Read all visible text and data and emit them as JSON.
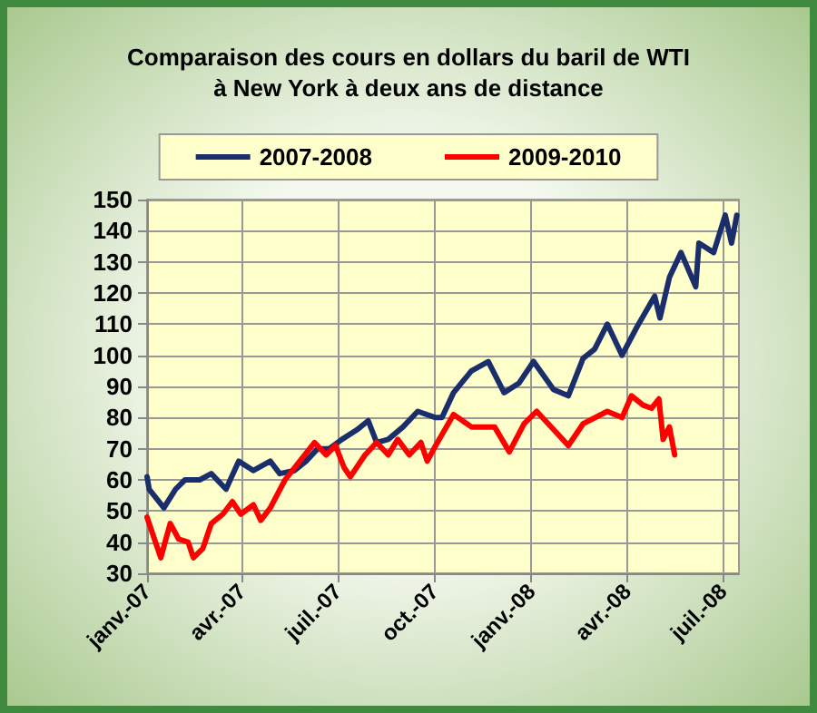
{
  "chart_data": {
    "type": "line",
    "title": "Comparaison des cours en dollars du baril de WTI\nà New York à deux ans de distance",
    "xlim": [
      "2007-01-01",
      "2008-07-16"
    ],
    "xticks": [
      {
        "value": "2007-01-01",
        "label": "janv.-07"
      },
      {
        "value": "2007-04-01",
        "label": "avr.-07"
      },
      {
        "value": "2007-07-01",
        "label": "juil.-07"
      },
      {
        "value": "2007-10-01",
        "label": "oct.-07"
      },
      {
        "value": "2008-01-01",
        "label": "janv.-08"
      },
      {
        "value": "2008-04-01",
        "label": "avr.-08"
      },
      {
        "value": "2008-07-01",
        "label": "juil.-08"
      }
    ],
    "ylim": [
      30,
      150
    ],
    "yticks": [
      30,
      40,
      50,
      60,
      70,
      80,
      90,
      100,
      110,
      120,
      130,
      140,
      150
    ],
    "grid": true,
    "legend": "top",
    "marker": "none",
    "line_style": "solid",
    "series": [
      {
        "name": "2007-2008",
        "color": "#1a2e6b",
        "x": [
          "2007-01-01",
          "2007-01-03",
          "2007-01-17",
          "2007-01-28",
          "2007-02-06",
          "2007-02-20",
          "2007-03-03",
          "2007-03-17",
          "2007-03-29",
          "2007-04-12",
          "2007-04-28",
          "2007-05-07",
          "2007-05-21",
          "2007-06-01",
          "2007-06-12",
          "2007-06-23",
          "2007-07-05",
          "2007-07-19",
          "2007-07-30",
          "2007-08-07",
          "2007-08-18",
          "2007-09-01",
          "2007-09-15",
          "2007-10-02",
          "2007-10-08",
          "2007-10-19",
          "2007-11-05",
          "2007-11-21",
          "2007-12-06",
          "2007-12-20",
          "2008-01-03",
          "2008-01-22",
          "2008-02-05",
          "2008-02-19",
          "2008-03-01",
          "2008-03-13",
          "2008-03-27",
          "2008-04-10",
          "2008-04-27",
          "2008-05-02",
          "2008-05-11",
          "2008-05-22",
          "2008-06-05",
          "2008-06-08",
          "2008-06-22",
          "2008-07-03",
          "2008-07-09",
          "2008-07-14"
        ],
        "values": [
          61,
          57,
          51,
          57,
          60,
          60,
          62,
          57,
          66,
          63,
          66,
          62,
          63,
          66,
          70,
          70,
          73,
          76,
          79,
          72,
          73,
          77,
          82,
          80,
          80,
          88,
          95,
          98,
          88,
          91,
          98,
          89,
          87,
          99,
          102,
          110,
          100,
          109,
          119,
          112,
          125,
          133,
          122,
          136,
          133,
          145,
          136,
          145
        ]
      },
      {
        "name": "2009-2010",
        "color": "#ff0000",
        "x": [
          "2007-01-01",
          "2007-01-05",
          "2007-01-14",
          "2007-01-23",
          "2007-01-31",
          "2007-02-09",
          "2007-02-14",
          "2007-02-23",
          "2007-03-03",
          "2007-03-14",
          "2007-03-23",
          "2007-03-31",
          "2007-04-12",
          "2007-04-19",
          "2007-04-28",
          "2007-05-12",
          "2007-05-26",
          "2007-06-09",
          "2007-06-20",
          "2007-06-29",
          "2007-07-07",
          "2007-07-13",
          "2007-07-27",
          "2007-08-07",
          "2007-08-18",
          "2007-08-27",
          "2007-09-07",
          "2007-09-18",
          "2007-09-24",
          "2007-10-02",
          "2007-10-19",
          "2007-11-05",
          "2007-11-27",
          "2007-12-11",
          "2007-12-25",
          "2008-01-06",
          "2008-01-28",
          "2008-02-05",
          "2008-02-19",
          "2008-03-13",
          "2008-03-27",
          "2008-04-05",
          "2008-04-16",
          "2008-04-24",
          "2008-05-01",
          "2008-05-05",
          "2008-05-11",
          "2008-05-16"
        ],
        "values": [
          48,
          44,
          35,
          46,
          41,
          40,
          35,
          38,
          46,
          49,
          53,
          49,
          52,
          47,
          51,
          60,
          66,
          72,
          68,
          71,
          64,
          61,
          68,
          72,
          68,
          73,
          68,
          72,
          66,
          71,
          81,
          77,
          77,
          69,
          78,
          82,
          74,
          71,
          78,
          82,
          80,
          87,
          84,
          83,
          86,
          73,
          77,
          68
        ]
      }
    ]
  }
}
